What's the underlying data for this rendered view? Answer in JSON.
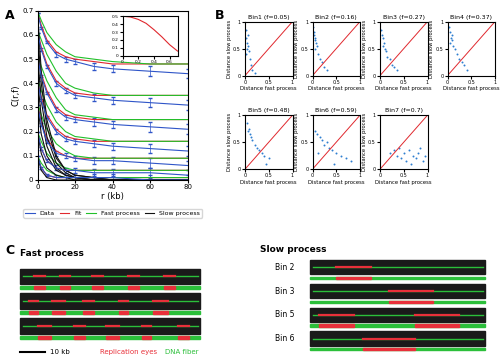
{
  "panel_labels": [
    "A",
    "B",
    "C"
  ],
  "chart_data": [
    {
      "type": "line",
      "x_label": "r (kb)",
      "y_label": "C(r,f)",
      "x": [
        0,
        2,
        5,
        10,
        15,
        20,
        30,
        40,
        60,
        80
      ],
      "xlim": [
        0,
        80
      ],
      "ylim": [
        0,
        0.7
      ],
      "xticks": [
        0,
        20,
        40,
        60,
        80
      ],
      "yticks": [
        0,
        0.1,
        0.2,
        0.3,
        0.4,
        0.5,
        0.6,
        0.7
      ],
      "legend": "bottom",
      "series": [
        {
          "name": "Data",
          "color": "#2f55c8",
          "type": "errorbar",
          "line_style": "solid",
          "errors": [
            0,
            0.005,
            0.005,
            0.01,
            0.01,
            0.01,
            0.015,
            0.015,
            0.02,
            0.02
          ],
          "values": [
            [
              0.69,
              0.63,
              0.57,
              0.52,
              0.5,
              0.49,
              0.47,
              0.46,
              0.45,
              0.44
            ],
            [
              0.61,
              0.54,
              0.47,
              0.4,
              0.37,
              0.35,
              0.34,
              0.33,
              0.32,
              0.31
            ],
            [
              0.51,
              0.43,
              0.36,
              0.29,
              0.26,
              0.25,
              0.24,
              0.23,
              0.22,
              0.21
            ],
            [
              0.41,
              0.33,
              0.26,
              0.2,
              0.17,
              0.16,
              0.15,
              0.14,
              0.13,
              0.12
            ],
            [
              0.31,
              0.23,
              0.16,
              0.11,
              0.1,
              0.09,
              0.08,
              0.08,
              0.07,
              0.06
            ],
            [
              0.2,
              0.13,
              0.08,
              0.05,
              0.04,
              0.04,
              0.03,
              0.03,
              0.03,
              0.02
            ],
            [
              0.1,
              0.05,
              0.02,
              0.01,
              0.01,
              0.01,
              0.01,
              0.01,
              0.0,
              0.0
            ]
          ]
        },
        {
          "name": "Fit",
          "color": "#e0282e",
          "type": "line",
          "line_style": "solid",
          "values": [
            [
              0.7,
              0.64,
              0.58,
              0.53,
              0.51,
              0.5,
              0.49,
              0.48,
              0.48,
              0.48
            ],
            [
              0.62,
              0.55,
              0.48,
              0.41,
              0.38,
              0.36,
              0.35,
              0.35,
              0.35,
              0.35
            ],
            [
              0.52,
              0.44,
              0.37,
              0.3,
              0.27,
              0.26,
              0.25,
              0.25,
              0.25,
              0.25
            ],
            [
              0.42,
              0.34,
              0.27,
              0.21,
              0.18,
              0.17,
              0.16,
              0.16,
              0.16,
              0.16
            ],
            [
              0.32,
              0.24,
              0.17,
              0.12,
              0.1,
              0.09,
              0.09,
              0.09,
              0.09,
              0.09
            ],
            [
              0.2,
              0.13,
              0.08,
              0.05,
              0.04,
              0.04,
              0.04,
              0.04,
              0.04,
              0.04
            ],
            [
              0.1,
              0.05,
              0.02,
              0.01,
              0.01,
              0.01,
              0.01,
              0.01,
              0.01,
              0.01
            ]
          ]
        },
        {
          "name": "Fast process",
          "color": "#22c02a",
          "type": "line",
          "line_style": "solid",
          "values": [
            [
              0.7,
              0.66,
              0.61,
              0.56,
              0.53,
              0.51,
              0.5,
              0.49,
              0.48,
              0.48
            ],
            [
              0.62,
              0.58,
              0.52,
              0.45,
              0.4,
              0.38,
              0.36,
              0.35,
              0.35,
              0.35
            ],
            [
              0.52,
              0.47,
              0.41,
              0.34,
              0.29,
              0.27,
              0.26,
              0.25,
              0.25,
              0.25
            ],
            [
              0.42,
              0.37,
              0.31,
              0.24,
              0.2,
              0.18,
              0.17,
              0.16,
              0.16,
              0.16
            ],
            [
              0.32,
              0.27,
              0.21,
              0.15,
              0.12,
              0.1,
              0.09,
              0.09,
              0.09,
              0.09
            ],
            [
              0.2,
              0.16,
              0.11,
              0.07,
              0.05,
              0.04,
              0.04,
              0.04,
              0.04,
              0.04
            ],
            [
              0.1,
              0.07,
              0.04,
              0.02,
              0.01,
              0.01,
              0.01,
              0.01,
              0.01,
              0.01
            ]
          ]
        },
        {
          "name": "Slow process",
          "color": "#111111",
          "type": "line",
          "line_style": "solid",
          "values": [
            [
              0.7,
              0.45,
              0.25,
              0.1,
              0.04,
              0.02,
              0.01,
              0.0,
              0.0,
              0.0
            ],
            [
              0.62,
              0.4,
              0.22,
              0.09,
              0.04,
              0.02,
              0.01,
              0.0,
              0.0,
              0.0
            ],
            [
              0.52,
              0.33,
              0.18,
              0.07,
              0.03,
              0.01,
              0.0,
              0.0,
              0.0,
              0.0
            ],
            [
              0.42,
              0.26,
              0.14,
              0.05,
              0.02,
              0.01,
              0.0,
              0.0,
              0.0,
              0.0
            ],
            [
              0.32,
              0.19,
              0.1,
              0.04,
              0.02,
              0.01,
              0.0,
              0.0,
              0.0,
              0.0
            ],
            [
              0.2,
              0.11,
              0.05,
              0.02,
              0.01,
              0.0,
              0.0,
              0.0,
              0.0,
              0.0
            ],
            [
              0.1,
              0.04,
              0.01,
              0.0,
              0.0,
              0.0,
              0.0,
              0.0,
              0.0,
              0.0
            ]
          ]
        }
      ]
    },
    {
      "type": "line",
      "color": "#e0282e",
      "x": [
        0,
        0.1,
        0.2,
        0.3,
        0.4,
        0.5,
        0.6,
        0.7
      ],
      "values": [
        0.5,
        0.49,
        0.46,
        0.41,
        0.33,
        0.24,
        0.14,
        0.06
      ],
      "xlim": [
        0,
        0.7
      ],
      "ylim": [
        0,
        0.5
      ],
      "xticks": [
        0,
        0.2,
        0.4,
        0.6
      ],
      "yticks": [
        0,
        0.1,
        0.2,
        0.3,
        0.4,
        0.5
      ]
    },
    {
      "type": "scatter",
      "title": "Bin1 (f=0.05)",
      "x_label": "Distance fast process",
      "y_label": "Distance slow process",
      "color": "#2f7fd0",
      "x": [
        0.02,
        0.03,
        0.05,
        0.04,
        0.08,
        0.1,
        0.06,
        0.12,
        0.15,
        0.03,
        0.07,
        0.2
      ],
      "values": [
        0.85,
        0.7,
        0.6,
        0.5,
        0.45,
        0.3,
        0.75,
        0.2,
        0.1,
        0.4,
        0.55,
        0.05
      ],
      "xlim": [
        0,
        1
      ],
      "ylim": [
        0,
        1
      ],
      "xticks": [
        0,
        0.5,
        1
      ],
      "yticks": [
        0,
        0.5,
        1
      ]
    },
    {
      "type": "scatter",
      "title": "Bin2 (f=0.16)",
      "x_label": "Distance fast process",
      "y_label": "Distance slow process",
      "color": "#2f7fd0",
      "x": [
        0.02,
        0.04,
        0.05,
        0.06,
        0.08,
        0.1,
        0.12,
        0.15,
        0.2,
        0.25,
        0.3,
        0.05,
        0.03
      ],
      "values": [
        0.9,
        0.8,
        0.7,
        0.65,
        0.6,
        0.55,
        0.4,
        0.3,
        0.25,
        0.15,
        0.1,
        0.5,
        0.75
      ],
      "xlim": [
        0,
        1
      ],
      "ylim": [
        0,
        1
      ],
      "xticks": [
        0,
        0.5,
        1
      ],
      "yticks": [
        0,
        0.5,
        1
      ]
    },
    {
      "type": "scatter",
      "title": "Bin3 (f=0.27)",
      "x_label": "Distance fast process",
      "y_label": "Distance slow process",
      "color": "#2f7fd0",
      "x": [
        0.03,
        0.05,
        0.07,
        0.08,
        0.1,
        0.12,
        0.15,
        0.2,
        0.25,
        0.3,
        0.35,
        0.06
      ],
      "values": [
        0.85,
        0.75,
        0.7,
        0.6,
        0.5,
        0.45,
        0.35,
        0.3,
        0.2,
        0.15,
        0.1,
        0.55
      ],
      "xlim": [
        0,
        1
      ],
      "ylim": [
        0,
        1
      ],
      "xticks": [
        0,
        0.5,
        1
      ],
      "yticks": [
        0,
        0.5,
        1
      ]
    },
    {
      "type": "scatter",
      "title": "Bin4 (f=0.37)",
      "x_label": "Distance fast process",
      "y_label": "Distance slow process",
      "color": "#2f7fd0",
      "x": [
        0.03,
        0.06,
        0.08,
        0.1,
        0.12,
        0.15,
        0.2,
        0.25,
        0.3,
        0.35,
        0.4,
        0.05,
        0.1
      ],
      "values": [
        0.9,
        0.8,
        0.7,
        0.65,
        0.55,
        0.5,
        0.4,
        0.3,
        0.25,
        0.2,
        0.1,
        0.6,
        0.75
      ],
      "xlim": [
        0,
        1
      ],
      "ylim": [
        0,
        1
      ],
      "xticks": [
        0,
        0.5,
        1
      ],
      "yticks": [
        0,
        0.5,
        1
      ]
    },
    {
      "type": "scatter",
      "title": "Bin5 (f=0.48)",
      "x_label": "Distance fast process",
      "y_label": "Distance slow process",
      "color": "#2f7fd0",
      "x": [
        0.04,
        0.06,
        0.1,
        0.12,
        0.15,
        0.2,
        0.25,
        0.3,
        0.35,
        0.4,
        0.5,
        0.08,
        0.45
      ],
      "values": [
        0.85,
        0.7,
        0.65,
        0.6,
        0.55,
        0.45,
        0.4,
        0.35,
        0.3,
        0.25,
        0.2,
        0.75,
        0.1
      ],
      "xlim": [
        0,
        1
      ],
      "ylim": [
        0,
        1
      ],
      "xticks": [
        0,
        0.5,
        1
      ],
      "yticks": [
        0,
        0.5,
        1
      ]
    },
    {
      "type": "scatter",
      "title": "Bin6 (f=0.59)",
      "x_label": "Distance fast process",
      "y_label": "Distance slow process",
      "color": "#2f7fd0",
      "x": [
        0.05,
        0.1,
        0.15,
        0.2,
        0.25,
        0.3,
        0.35,
        0.4,
        0.5,
        0.6,
        0.7,
        0.8,
        0.12,
        0.45
      ],
      "values": [
        0.7,
        0.65,
        0.6,
        0.55,
        0.45,
        0.5,
        0.4,
        0.35,
        0.3,
        0.25,
        0.2,
        0.15,
        0.3,
        0.1
      ],
      "xlim": [
        0,
        1
      ],
      "ylim": [
        0,
        1
      ],
      "xticks": [
        0,
        0.5,
        1
      ],
      "yticks": [
        0,
        0.5,
        1
      ]
    },
    {
      "type": "scatter",
      "title": "Bin7 (f=0.7)",
      "x_label": "Distance fast process",
      "y_label": "Distance slow process",
      "color": "#2f7fd0",
      "x": [
        0.2,
        0.3,
        0.35,
        0.4,
        0.45,
        0.5,
        0.55,
        0.6,
        0.7,
        0.75,
        0.8,
        0.9,
        0.95,
        0.65,
        0.85
      ],
      "values": [
        0.3,
        0.35,
        0.25,
        0.4,
        0.2,
        0.3,
        0.15,
        0.35,
        0.25,
        0.2,
        0.3,
        0.15,
        0.25,
        0.1,
        0.4
      ],
      "xlim": [
        0,
        1
      ],
      "ylim": [
        0,
        1
      ],
      "xticks": [
        0,
        0.5,
        1
      ],
      "yticks": [
        0,
        0.5,
        1
      ]
    }
  ],
  "fibers": {
    "left_title": "Fast process",
    "right_title": "Slow process",
    "right_rows": [
      "Bin 2",
      "Bin 3",
      "Bin 5",
      "Bin 6"
    ],
    "scale_label": "10 kb",
    "key": [
      {
        "name": "Replication eyes",
        "color": "#e8303a"
      },
      {
        "name": "DNA fiber",
        "color": "#2bbf3a"
      }
    ]
  }
}
